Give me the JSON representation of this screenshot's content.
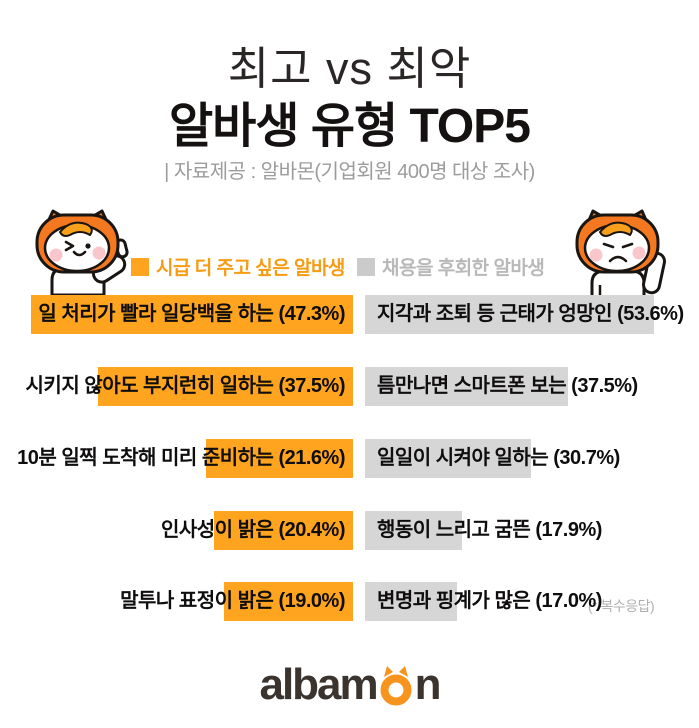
{
  "header": {
    "title_line1": "최고 vs 최악",
    "title_line2": "알바생 유형 TOP5",
    "subtitle": "| 자료제공 : 알바몬(기업회원 400명 대상 조사)"
  },
  "legend": {
    "best": {
      "label": "시급 더 주고 싶은 알바생",
      "color": "#FFA41E"
    },
    "worst": {
      "label": "채용을 후회한 알바생",
      "color": "#CBCBCB"
    }
  },
  "chart_data": {
    "type": "bar",
    "layout": "mirrored-horizontal",
    "unit": "%",
    "note": "(* 복수응답)",
    "series": [
      {
        "name": "시급 더 주고 싶은 알바생",
        "color": "#FFA41E",
        "align": "right",
        "items": [
          {
            "label": "일 처리가 빨라 일당백을 하는",
            "value": 47.3,
            "display": "일 처리가 빨라 일당백을 하는 (47.3%)"
          },
          {
            "label": "시키지 않아도 부지런히 일하는",
            "value": 37.5,
            "display": "시키지 않아도 부지런히 일하는 (37.5%)"
          },
          {
            "label": "10분 일찍 도착해 미리 준비하는",
            "value": 21.6,
            "display": "10분 일찍 도착해 미리 준비하는 (21.6%)"
          },
          {
            "label": "인사성이 밝은",
            "value": 20.4,
            "display": "인사성이 밝은 (20.4%)"
          },
          {
            "label": "말투나 표정이 밝은",
            "value": 19.0,
            "display": "말투나 표정이 밝은 (19.0%)"
          }
        ]
      },
      {
        "name": "채용을 후회한 알바생",
        "color": "#D6D6D6",
        "align": "left",
        "items": [
          {
            "label": "지각과 조퇴 등 근태가 엉망인",
            "value": 53.6,
            "display": "지각과 조퇴 등 근태가 엉망인 (53.6%)"
          },
          {
            "label": "틈만나면 스마트폰 보는",
            "value": 37.5,
            "display": "틈만나면 스마트폰 보는 (37.5%)"
          },
          {
            "label": "일일이 시켜야 일하는",
            "value": 30.7,
            "display": "일일이 시켜야 일하는 (30.7%)"
          },
          {
            "label": "행동이 느리고 굼뜬",
            "value": 17.9,
            "display": "행동이 느리고 굼뜬 (17.9%)"
          },
          {
            "label": "변명과 핑계가 많은",
            "value": 17.0,
            "display": "변명과 핑계가 많은 (17.0%)"
          }
        ]
      }
    ]
  },
  "mascots": {
    "left": "happy-cat-thumbs-up",
    "right": "sad-cat"
  },
  "footer": {
    "logo_prefix": "albam",
    "logo_suffix": "n",
    "logo_o": "cat-ears-o",
    "logo_color": "#3B342E",
    "logo_accent": "#F7941D"
  }
}
